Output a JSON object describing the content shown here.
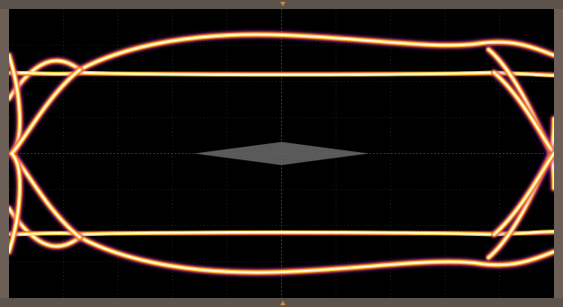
{
  "app": {
    "type": "oscilloscope-eye-diagram-display",
    "corner_markers": {
      "top_left": "",
      "top_right": "",
      "bottom_left": "",
      "bottom_right": ""
    }
  },
  "colors": {
    "frame": "#6b5f57",
    "bar": "#5c534d",
    "screen": "#000000",
    "grid": "#3a3a3a",
    "trace_core": "#fffbe8",
    "trace_hot": "#ffd23a",
    "trace_warm": "#ff6a1a",
    "trace_edge": "#b02cc8",
    "mask": "#6a6a6a",
    "marker": "#d0883a"
  },
  "chart_data": {
    "type": "eye-diagram",
    "title": "",
    "xlabel": "",
    "ylabel": "",
    "grid": true,
    "grid_divisions": {
      "x": 10,
      "y": 8
    },
    "xlim": [
      0,
      1
    ],
    "ylim": [
      0,
      1
    ],
    "unit_interval_crossings": [
      0.0,
      0.13,
      0.88,
      1.0
    ],
    "levels": {
      "high_outer": 0.9,
      "high_inner": 0.77,
      "low_inner": 0.23,
      "low_outer": 0.1
    },
    "mask": {
      "type": "diamond",
      "center": [
        0.5,
        0.5
      ],
      "half_width": 0.16,
      "half_height": 0.04
    }
  }
}
